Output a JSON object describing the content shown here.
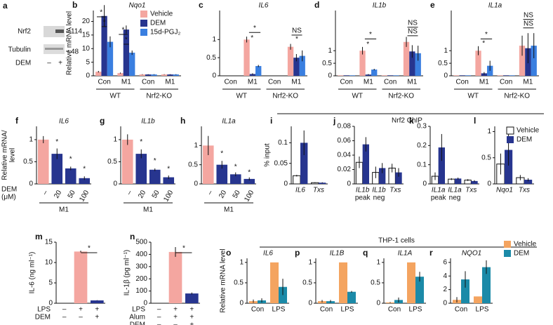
{
  "figure": {
    "blot": {
      "letter": "a",
      "bands": [
        "Nrf2",
        "Tubulin"
      ],
      "sizes": [
        "114",
        "48"
      ],
      "row_label": "DEM",
      "signs": [
        "–",
        "+"
      ]
    },
    "headers": [
      "Nrf2 ChIP",
      "THP-1 cells"
    ]
  },
  "chart_data": [
    {
      "type": "bar",
      "letter": "b",
      "title": "Nqo1",
      "ylabel": "Relative mRNA level",
      "ylim": [
        0,
        24
      ],
      "yticks": [
        0,
        5,
        10,
        15,
        20
      ],
      "categories": [
        "Con",
        "M1",
        "Con",
        "M1"
      ],
      "groups": [
        "WT",
        "Nrf2-KO"
      ],
      "series": [
        {
          "name": "Vehicle",
          "color": "#f4a6a0",
          "values": [
            1.5,
            1,
            0.5,
            0.5
          ],
          "errors": [
            0.3,
            0.2,
            0.1,
            0.1
          ]
        },
        {
          "name": "DEM",
          "color": "#27358f",
          "values": [
            22,
            17,
            0.5,
            0.5
          ],
          "errors": [
            4,
            1.5,
            0.1,
            0.1
          ]
        },
        {
          "name": "15d-PGJ₂",
          "color": "#3a7fe0",
          "values": [
            12.5,
            8.5,
            0.5,
            0.5
          ],
          "errors": [
            2,
            0.8,
            0.1,
            0.1
          ]
        }
      ],
      "annotations": [
        "*",
        "*",
        "*",
        "*"
      ]
    },
    {
      "type": "bar",
      "letter": "c",
      "title": "IL6",
      "ylim": [
        0,
        1.8
      ],
      "yticks": [
        0,
        0.5,
        1
      ],
      "categories": [
        "Con",
        "M1",
        "Con",
        "M1"
      ],
      "groups": [
        "WT",
        "Nrf2-KO"
      ],
      "series": [
        {
          "color": "#f4a6a0",
          "values": [
            0,
            1,
            0,
            0.8
          ],
          "errors": [
            0,
            0.08,
            0,
            0.08
          ]
        },
        {
          "color": "#27358f",
          "values": [
            0,
            0.05,
            0,
            0.5
          ],
          "errors": [
            0,
            0.02,
            0,
            0.1
          ]
        },
        {
          "color": "#3a7fe0",
          "values": [
            0,
            0.27,
            0,
            0.55
          ],
          "errors": [
            0,
            0.03,
            0,
            0.15
          ]
        }
      ],
      "annotations": [
        "*",
        "*",
        "NS",
        "*"
      ]
    },
    {
      "type": "bar",
      "letter": "d",
      "title": "IL1b",
      "ylim": [
        0,
        2.6
      ],
      "yticks": [
        0,
        0.5,
        1
      ],
      "categories": [
        "Con",
        "M1",
        "Con",
        "M1"
      ],
      "groups": [
        "WT",
        "Nrf2-KO"
      ],
      "series": [
        {
          "color": "#f4a6a0",
          "values": [
            0.02,
            1,
            0.02,
            1.35
          ],
          "errors": [
            0,
            0.15,
            0,
            0.2
          ]
        },
        {
          "color": "#27358f",
          "values": [
            0.02,
            0.05,
            0.02,
            0.97
          ],
          "errors": [
            0,
            0.02,
            0,
            0.25
          ]
        },
        {
          "color": "#3a7fe0",
          "values": [
            0.02,
            0.25,
            0.02,
            0.9
          ],
          "errors": [
            0,
            0.03,
            0,
            0.3
          ]
        }
      ],
      "annotations": [
        "*",
        "*",
        "NS",
        "NS"
      ]
    },
    {
      "type": "bar",
      "letter": "e",
      "title": "IL1a",
      "ylim": [
        0,
        2.6
      ],
      "yticks": [
        0,
        0.5,
        1
      ],
      "categories": [
        "Con",
        "M1",
        "Con",
        "M1"
      ],
      "groups": [
        "WT",
        "Nrf2-KO"
      ],
      "series": [
        {
          "color": "#f4a6a0",
          "values": [
            0.02,
            1,
            0.02,
            1.2
          ],
          "errors": [
            0,
            0.18,
            0,
            0.4
          ]
        },
        {
          "color": "#27358f",
          "values": [
            0.02,
            0.1,
            0.02,
            1.1
          ],
          "errors": [
            0,
            0.05,
            0,
            0.6
          ]
        },
        {
          "color": "#3a7fe0",
          "values": [
            0.02,
            0.4,
            0.02,
            1.2
          ],
          "errors": [
            0,
            0.2,
            0,
            0.5
          ]
        }
      ],
      "annotations": [
        "*",
        "*",
        "NS",
        "NS"
      ]
    },
    {
      "type": "bar",
      "letter": "f",
      "title": "IL6",
      "ylabel": [
        "Relative mRNA/",
        "level"
      ],
      "ylim": [
        0,
        1.3
      ],
      "yticks": [
        0,
        0.5,
        1
      ],
      "categories": [
        "–",
        "20",
        "50",
        "100"
      ],
      "groups": [
        "M1"
      ],
      "row_label": [
        "DEM",
        "(μM)"
      ],
      "series": [
        {
          "colors": [
            "#f4a6a0",
            "#27358f",
            "#27358f",
            "#27358f"
          ],
          "values": [
            1,
            0.68,
            0.35,
            0.13
          ],
          "errors": [
            0.08,
            0.12,
            0.04,
            0.04
          ]
        }
      ],
      "annotations": [
        "*",
        "*",
        "*"
      ]
    },
    {
      "type": "bar",
      "letter": "g",
      "title": "IL1b",
      "ylim": [
        0,
        1.3
      ],
      "yticks": [
        0,
        0.5,
        1
      ],
      "categories": [
        "–",
        "20",
        "50",
        "100"
      ],
      "groups": [
        "M1"
      ],
      "series": [
        {
          "colors": [
            "#f4a6a0",
            "#27358f",
            "#27358f",
            "#27358f"
          ],
          "values": [
            1,
            0.68,
            0.32,
            0.15
          ],
          "errors": [
            0.12,
            0.1,
            0.03,
            0.04
          ]
        }
      ],
      "annotations": [
        "*",
        "*",
        "*"
      ]
    },
    {
      "type": "bar",
      "letter": "h",
      "title": "IL1a",
      "ylim": [
        0,
        1.5
      ],
      "yticks": [
        0,
        0.5,
        1
      ],
      "categories": [
        "–",
        "20",
        "50",
        "100"
      ],
      "groups": [
        "M1"
      ],
      "series": [
        {
          "colors": [
            "#f4a6a0",
            "#27358f",
            "#27358f",
            "#27358f"
          ],
          "values": [
            1,
            0.5,
            0.25,
            0.13
          ],
          "errors": [
            0.25,
            0.1,
            0.05,
            0.04
          ]
        }
      ],
      "annotations": [
        "*",
        "*",
        "*"
      ]
    },
    {
      "type": "bar",
      "letter": "i",
      "ylabel": "% input",
      "ylim": [
        0,
        0.14
      ],
      "yticks": [
        0,
        0.05,
        0.1
      ],
      "categories": [
        "IL6",
        "Txs"
      ],
      "category_colors": [
        "#2a8fd6",
        "#111111"
      ],
      "series": [
        {
          "color": "#ffffff",
          "values": [
            0.02,
            0.003
          ],
          "errors": [
            0.002,
            0.001
          ]
        },
        {
          "color": "#27358f",
          "values": [
            0.1,
            0.003
          ],
          "errors": [
            0.03,
            0.001
          ]
        }
      ]
    },
    {
      "type": "bar",
      "letter": "j",
      "ylim": [
        0,
        0.08
      ],
      "yticks": [
        0,
        0.02,
        0.04,
        0.06,
        0.08
      ],
      "categories": [
        [
          "IL1b",
          "peak"
        ],
        [
          "IL1b",
          "neg"
        ],
        "Txs"
      ],
      "category_colors": [
        "#2a8fd6",
        "#111111",
        "#111111"
      ],
      "series": [
        {
          "color": "#ffffff",
          "values": [
            0.03,
            0.016,
            0.022
          ],
          "errors": [
            0.008,
            0.008,
            0.006
          ]
        },
        {
          "color": "#27358f",
          "values": [
            0.055,
            0.022,
            0.016
          ],
          "errors": [
            0.01,
            0.007,
            0.006
          ]
        }
      ]
    },
    {
      "type": "bar",
      "letter": "k",
      "ylim": [
        0,
        0.3
      ],
      "yticks": [
        0,
        0.1,
        0.2,
        0.3
      ],
      "categories": [
        [
          "IL1a",
          "peak"
        ],
        [
          "IL1a",
          "neg"
        ],
        "Txs"
      ],
      "category_colors": [
        "#2a8fd6",
        "#111111",
        "#111111"
      ],
      "series": [
        {
          "color": "#ffffff",
          "values": [
            0.04,
            0.025,
            0.02
          ],
          "errors": [
            0.02,
            0.005,
            0.005
          ]
        },
        {
          "color": "#27358f",
          "values": [
            0.19,
            0.028,
            0.015
          ],
          "errors": [
            0.07,
            0.005,
            0.004
          ]
        }
      ]
    },
    {
      "type": "bar",
      "letter": "l",
      "ylim": [
        0,
        1.1
      ],
      "yticks": [
        0,
        0.5,
        1
      ],
      "categories": [
        "Nqo1",
        "Txs"
      ],
      "category_colors": [
        "#2a8fd6",
        "#111111"
      ],
      "series": [
        {
          "name": "Vehicle",
          "color": "#ffffff",
          "values": [
            0.38,
            0.12
          ],
          "errors": [
            0.2,
            0.05
          ]
        },
        {
          "name": "DEM",
          "color": "#27358f",
          "values": [
            0.65,
            0.08
          ],
          "errors": [
            0.3,
            0.03
          ]
        }
      ]
    },
    {
      "type": "bar",
      "letter": "m",
      "ylabel": "IL-6 (ng ml⁻¹)",
      "ylim": [
        0,
        15
      ],
      "yticks": [
        0,
        5,
        10,
        15
      ],
      "rows": [
        {
          "label": "LPS",
          "signs": [
            "–",
            "+",
            "+"
          ]
        },
        {
          "label": "DEM",
          "signs": [
            "–",
            "–",
            "+"
          ]
        }
      ],
      "series": [
        {
          "colors": [
            "#f4a6a0",
            "#f4a6a0",
            "#27358f"
          ],
          "values": [
            0,
            12.7,
            0.7
          ],
          "errors": [
            0,
            0.2,
            0.05
          ]
        }
      ],
      "annotations": [
        "*"
      ]
    },
    {
      "type": "bar",
      "letter": "n",
      "ylabel": "IL-1β (pg ml⁻¹)",
      "ylim": [
        0,
        500
      ],
      "yticks": [
        0,
        100,
        200,
        300,
        400,
        500
      ],
      "rows": [
        {
          "label": "LPS",
          "signs": [
            "–",
            "+",
            "+"
          ]
        },
        {
          "label": "Alum",
          "signs": [
            "–",
            "+",
            "+"
          ]
        },
        {
          "label": "DEM",
          "signs": [
            "–",
            "–",
            "+"
          ]
        }
      ],
      "series": [
        {
          "colors": [
            "#f4a6a0",
            "#f4a6a0",
            "#27358f"
          ],
          "values": [
            0,
            420,
            80
          ],
          "errors": [
            0,
            40,
            8
          ]
        }
      ],
      "annotations": [
        "*"
      ]
    },
    {
      "type": "bar",
      "letter": "o",
      "title": "IL6",
      "ylabel": "Relative mRNA level",
      "ylim": [
        0,
        1.1
      ],
      "yticks": [
        0,
        0.5,
        1
      ],
      "categories": [
        "Con",
        "LPS"
      ],
      "series": [
        {
          "color": "#f4a460",
          "values": [
            0.05,
            1
          ],
          "errors": [
            0.04,
            0
          ]
        },
        {
          "color": "#1b8aa8",
          "values": [
            0.07,
            0.4
          ],
          "errors": [
            0.05,
            0.2
          ]
        }
      ]
    },
    {
      "type": "bar",
      "letter": "p",
      "title": "IL1B",
      "ylim": [
        0,
        1.1
      ],
      "yticks": [
        0,
        0.5,
        1
      ],
      "categories": [
        "Con",
        "LPS"
      ],
      "series": [
        {
          "color": "#f4a460",
          "values": [
            0.05,
            1
          ],
          "errors": [
            0.03,
            0
          ]
        },
        {
          "color": "#1b8aa8",
          "values": [
            0.05,
            0.28
          ],
          "errors": [
            0.03,
            0.02
          ]
        }
      ]
    },
    {
      "type": "bar",
      "letter": "q",
      "title": "IL1A",
      "ylim": [
        0,
        1.1
      ],
      "yticks": [
        0,
        0.5,
        1
      ],
      "categories": [
        "Con",
        "LPS"
      ],
      "series": [
        {
          "color": "#f4a460",
          "values": [
            0.02,
            1
          ],
          "errors": [
            0.01,
            0
          ]
        },
        {
          "color": "#1b8aa8",
          "values": [
            0.08,
            0.65
          ],
          "errors": [
            0.06,
            0.12
          ]
        }
      ]
    },
    {
      "type": "bar",
      "letter": "r",
      "title": "NQO1",
      "ylim": [
        0,
        6.6
      ],
      "yticks": [
        0,
        2,
        4,
        6
      ],
      "categories": [
        "Con",
        "LPS"
      ],
      "series": [
        {
          "name": "Vehicle",
          "color": "#f4a460",
          "values": [
            0.5,
            1
          ],
          "errors": [
            0.4,
            0
          ]
        },
        {
          "name": "DEM",
          "color": "#1b8aa8",
          "values": [
            3.5,
            5.3
          ],
          "errors": [
            1.2,
            1
          ]
        }
      ]
    }
  ]
}
